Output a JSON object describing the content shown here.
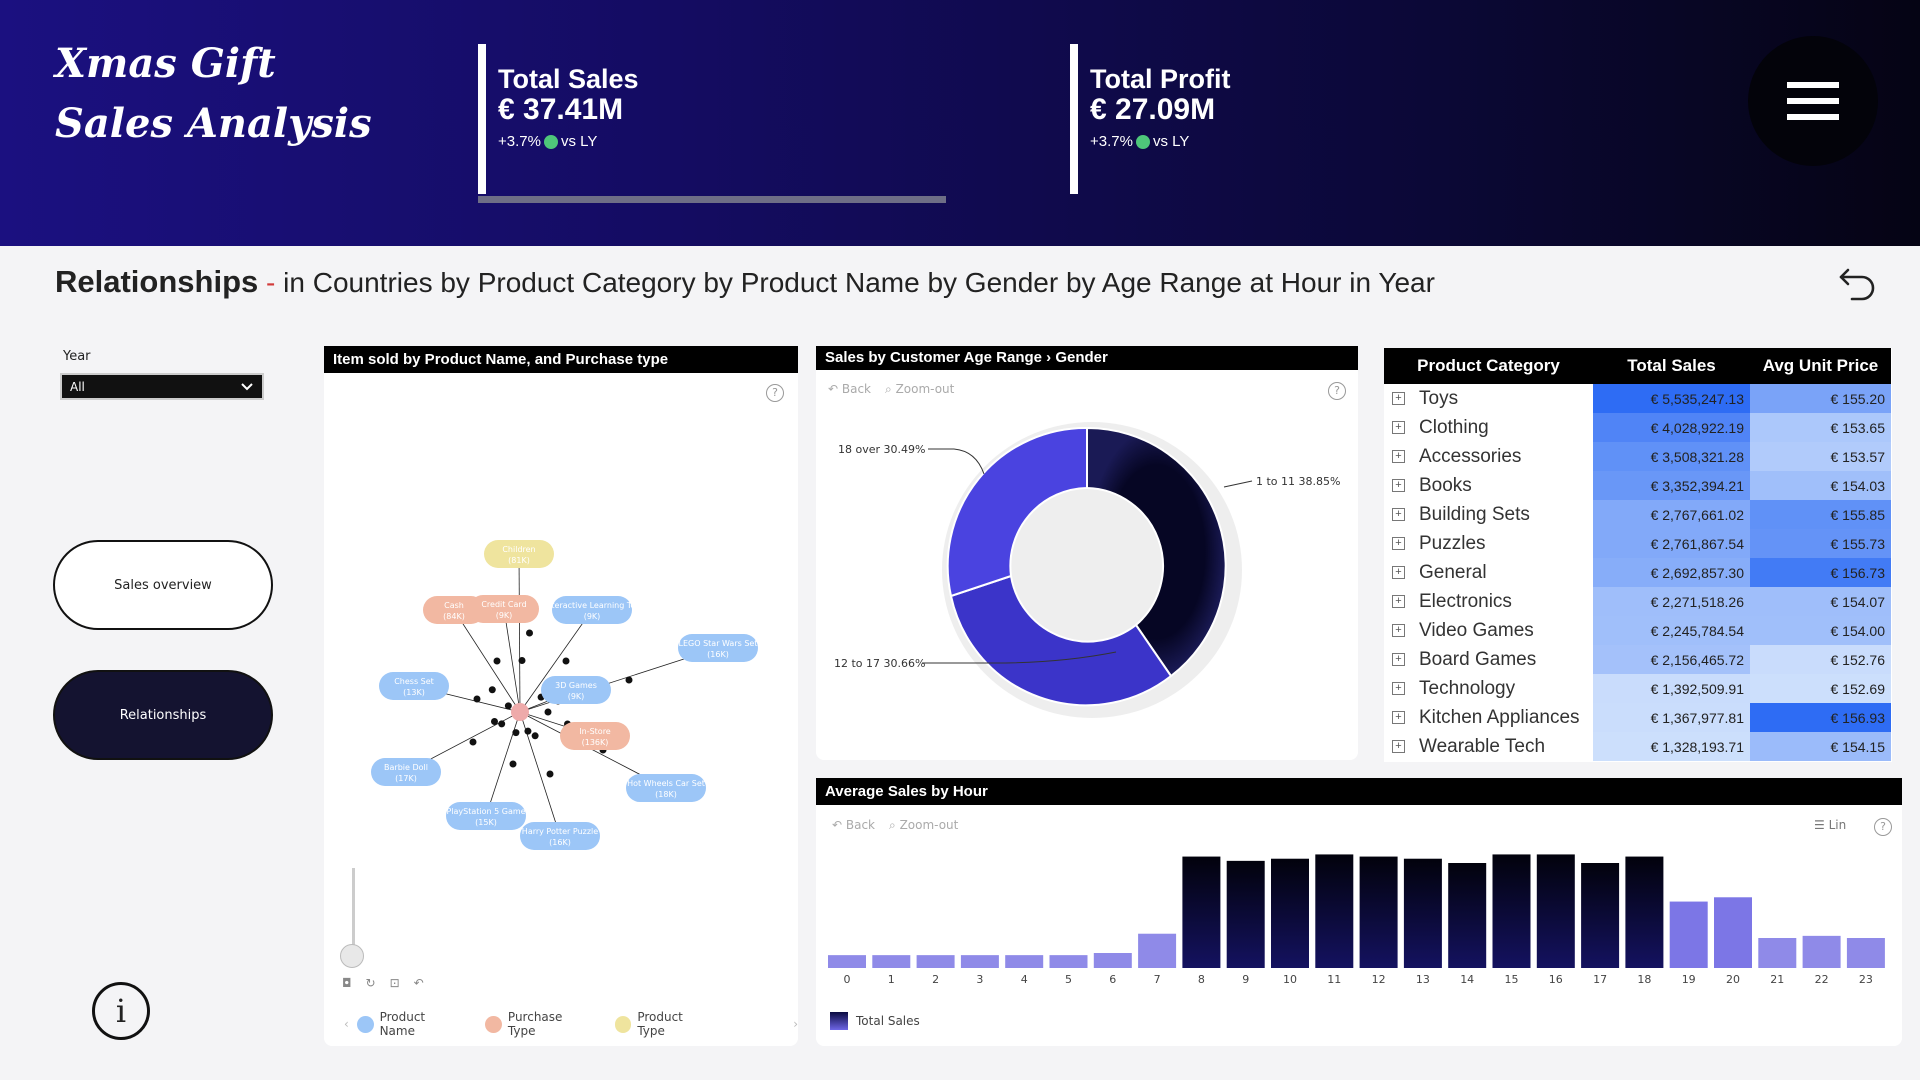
{
  "header": {
    "logo_line1": "Xmas Gift",
    "logo_line2": "Sales Analysis",
    "kpi1": {
      "title": "Total Sales",
      "value": "€ 37.41M",
      "delta": "+3.7%",
      "vs": "vs LY"
    },
    "kpi2": {
      "title": "Total Profit",
      "value": "€ 27.09M",
      "delta": "+3.7%",
      "vs": "vs LY"
    },
    "progress_fraction": 1.0,
    "menu_icon": "hamburger-icon"
  },
  "section": {
    "title": "Relationships",
    "dash": "-",
    "subtitle": "in Countries by Product Category by Product Name by Gender by Age Range at Hour in Year",
    "back_icon": "undo-arrow-icon"
  },
  "slicer": {
    "label": "Year",
    "value": "All"
  },
  "nav": {
    "overview": "Sales overview",
    "relationships": "Relationships"
  },
  "info_icon": "i",
  "network": {
    "title": "Item sold by Product Name, and Purchase type",
    "nodes": [
      {
        "label": "Children",
        "sub": "(81K)",
        "type": "Product Type"
      },
      {
        "label": "Cash",
        "sub": "(84K)",
        "type": "Purchase Type"
      },
      {
        "label": "Credit Card",
        "sub": "(9K)",
        "type": "Purchase Type"
      },
      {
        "label": "Interactive Learning Toy",
        "sub": "(9K)",
        "type": "Product Name"
      },
      {
        "label": "LEGO Star Wars Set",
        "sub": "(16K)",
        "type": "Product Name"
      },
      {
        "label": "Chess Set",
        "sub": "(13K)",
        "type": "Product Name"
      },
      {
        "label": "3D Games",
        "sub": "(9K)",
        "type": "Product Name"
      },
      {
        "label": "In-Store",
        "sub": "(136K)",
        "type": "Purchase Type"
      },
      {
        "label": "Barbie Doll",
        "sub": "(17K)",
        "type": "Product Name"
      },
      {
        "label": "Hot Wheels Car Set",
        "sub": "(18K)",
        "type": "Product Name"
      },
      {
        "label": "PlayStation 5 Game",
        "sub": "(15K)",
        "type": "Product Name"
      },
      {
        "label": "Harry Potter Puzzle",
        "sub": "(16K)",
        "type": "Product Name"
      }
    ],
    "legend": [
      "Product Name",
      "Purchase Type",
      "Product Type"
    ],
    "legend_colors": [
      "#9cc6f7",
      "#f2b8a2",
      "#efe49e"
    ]
  },
  "donut": {
    "title": "Sales by Customer Age Range › Gender",
    "back": "Back",
    "zoom": "Zoom-out",
    "labels": [
      "18 over 30.49%",
      "1 to 11 38.85%",
      "12 to 17 30.66%"
    ]
  },
  "table": {
    "headers": [
      "Product Category",
      "Total Sales",
      "Avg Unit Price"
    ],
    "rows": [
      {
        "cat": "Toys",
        "sales": "€ 5,535,247.13",
        "price": "€ 155.20",
        "s": 1.0,
        "p": 0.55
      },
      {
        "cat": "Clothing",
        "sales": "€ 4,028,922.19",
        "price": "€ 153.65",
        "s": 0.8,
        "p": 0.25
      },
      {
        "cat": "Accessories",
        "sales": "€ 3,508,321.28",
        "price": "€ 153.57",
        "s": 0.7,
        "p": 0.22
      },
      {
        "cat": "Books",
        "sales": "€ 3,352,394.21",
        "price": "€ 154.03",
        "s": 0.65,
        "p": 0.32
      },
      {
        "cat": "Building Sets",
        "sales": "€ 2,767,661.02",
        "price": "€ 155.85",
        "s": 0.5,
        "p": 0.7
      },
      {
        "cat": "Puzzles",
        "sales": "€ 2,761,867.54",
        "price": "€ 155.73",
        "s": 0.5,
        "p": 0.68
      },
      {
        "cat": "General",
        "sales": "€ 2,692,857.30",
        "price": "€ 156.73",
        "s": 0.47,
        "p": 0.88
      },
      {
        "cat": "Electronics",
        "sales": "€ 2,271,518.26",
        "price": "€ 154.07",
        "s": 0.33,
        "p": 0.33
      },
      {
        "cat": "Video Games",
        "sales": "€ 2,245,784.54",
        "price": "€ 154.00",
        "s": 0.32,
        "p": 0.32
      },
      {
        "cat": "Board Games",
        "sales": "€ 2,156,465.72",
        "price": "€ 152.76",
        "s": 0.3,
        "p": 0.08
      },
      {
        "cat": "Technology",
        "sales": "€ 1,392,509.91",
        "price": "€ 152.69",
        "s": 0.08,
        "p": 0.06
      },
      {
        "cat": "Kitchen Appliances",
        "sales": "€ 1,367,977.81",
        "price": "€ 156.93",
        "s": 0.07,
        "p": 1.0
      },
      {
        "cat": "Wearable Tech",
        "sales": "€ 1,328,193.71",
        "price": "€ 154.15",
        "s": 0.06,
        "p": 0.35
      }
    ]
  },
  "hourly": {
    "title": "Average Sales by Hour",
    "back": "Back",
    "zoom": "Zoom-out",
    "lin": "Lin",
    "legend": "Total Sales"
  },
  "chart_data": {
    "type": "bar",
    "title": "Average Sales by Hour",
    "categories": [
      "0",
      "1",
      "2",
      "3",
      "4",
      "5",
      "6",
      "7",
      "8",
      "9",
      "10",
      "11",
      "12",
      "13",
      "14",
      "15",
      "16",
      "17",
      "18",
      "19",
      "20",
      "21",
      "22",
      "23"
    ],
    "series": [
      {
        "name": "Total Sales",
        "values": [
          0.6,
          0.6,
          0.6,
          0.6,
          0.6,
          0.6,
          0.7,
          1.6,
          5.2,
          5.0,
          5.1,
          5.3,
          5.2,
          5.1,
          4.9,
          5.3,
          5.3,
          4.9,
          5.2,
          3.1,
          3.3,
          1.4,
          1.5,
          1.4
        ]
      }
    ],
    "ylim": [
      0,
      5.6
    ]
  }
}
